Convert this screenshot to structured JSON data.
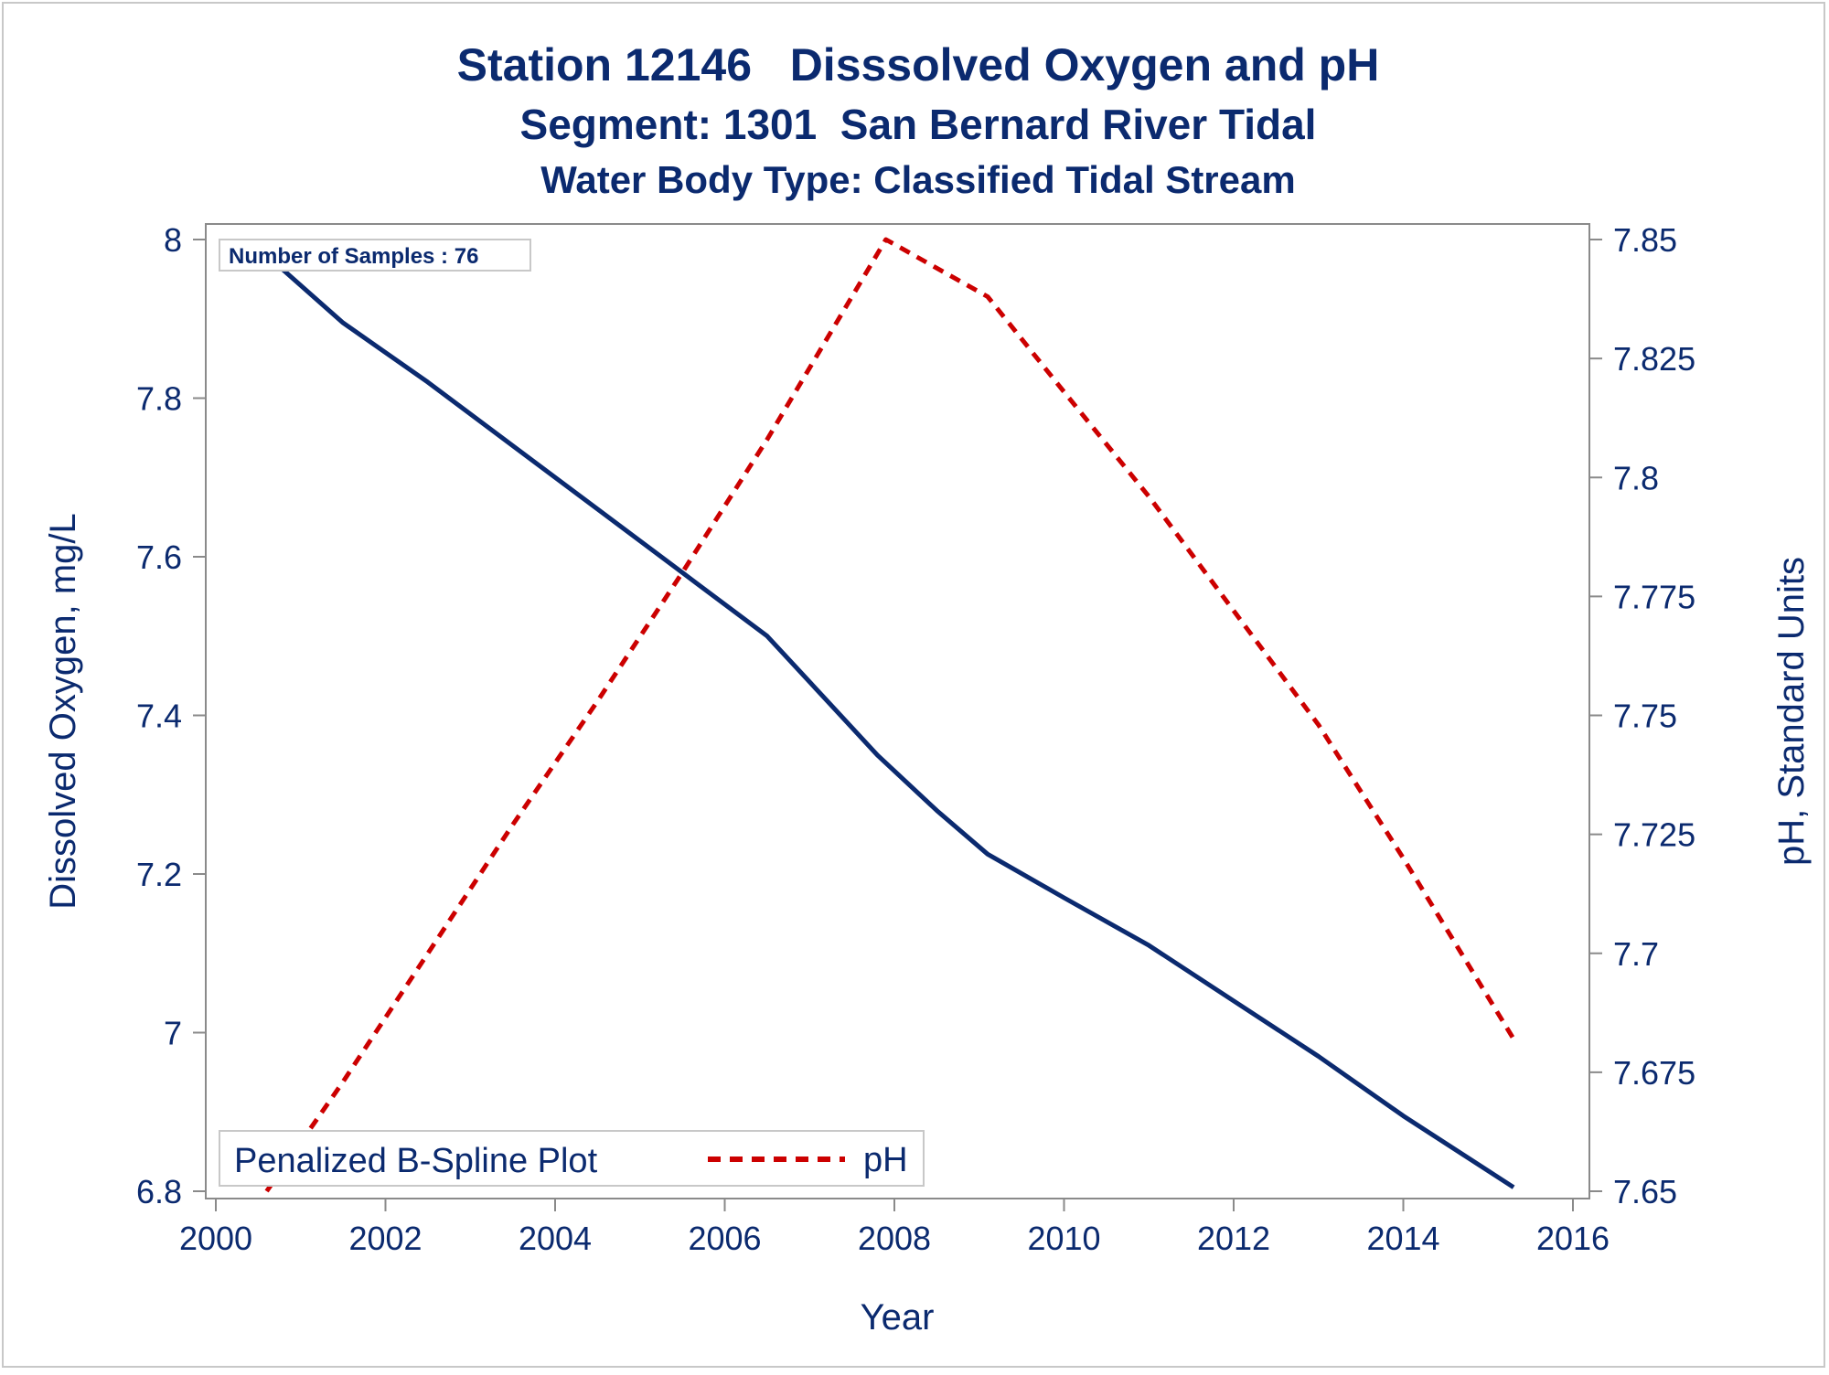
{
  "colors": {
    "do_line": "#0b2a6f",
    "ph_line": "#cc0000",
    "text": "#0b2a6f",
    "axis": "#8a8a8a"
  },
  "chart_data": {
    "type": "line",
    "title": "Station 12146   Disssolved Oxygen and pH",
    "subtitle": "Segment: 1301  San Bernard River Tidal",
    "subtitle2": "Water Body Type: Classified Tidal Stream",
    "xlabel": "Year",
    "ylabel": "Dissolved Oxygen, mg/L",
    "y2label": "pH, Standard Units",
    "xlim": [
      2000,
      2016
    ],
    "ylim": [
      6.8,
      8.0
    ],
    "y2lim": [
      7.65,
      7.85
    ],
    "x_ticks": [
      "2000",
      "2002",
      "2004",
      "2006",
      "2008",
      "2010",
      "2012",
      "2014",
      "2016"
    ],
    "y_ticks": [
      "6.8",
      "7",
      "7.2",
      "7.4",
      "7.6",
      "7.8",
      "8"
    ],
    "y2_ticks": [
      "7.65",
      "7.675",
      "7.7",
      "7.725",
      "7.75",
      "7.775",
      "7.8",
      "7.825",
      "7.85"
    ],
    "inset_note": "Number of Samples : 76",
    "legend": {
      "title": "Penalized B-Spline Plot",
      "entries": [
        "pH"
      ],
      "placement": "bottom-left"
    },
    "grid": false,
    "series": [
      {
        "axis": "left",
        "style": "solid",
        "x": [
          2000.6,
          2001.5,
          2002.5,
          2003.5,
          2004.5,
          2005.5,
          2006.5,
          2007.8,
          2008.5,
          2009.1,
          2010.0,
          2011.0,
          2012.0,
          2013.0,
          2014.0,
          2015.3
        ],
        "values": [
          7.98,
          7.895,
          7.82,
          7.74,
          7.66,
          7.58,
          7.5,
          7.35,
          7.28,
          7.225,
          7.17,
          7.11,
          7.04,
          6.97,
          6.895,
          6.805
        ]
      },
      {
        "name": "pH",
        "axis": "right",
        "style": "dashed",
        "x": [
          2000.6,
          2001.5,
          2002.5,
          2003.5,
          2004.5,
          2005.5,
          2006.5,
          2007.9,
          2009.1,
          2010.0,
          2011.0,
          2012.0,
          2013.0,
          2014.0,
          2015.3
        ],
        "values": [
          7.65,
          7.673,
          7.7,
          7.727,
          7.753,
          7.78,
          7.808,
          7.85,
          7.838,
          7.818,
          7.796,
          7.772,
          7.748,
          7.72,
          7.682
        ]
      }
    ]
  }
}
